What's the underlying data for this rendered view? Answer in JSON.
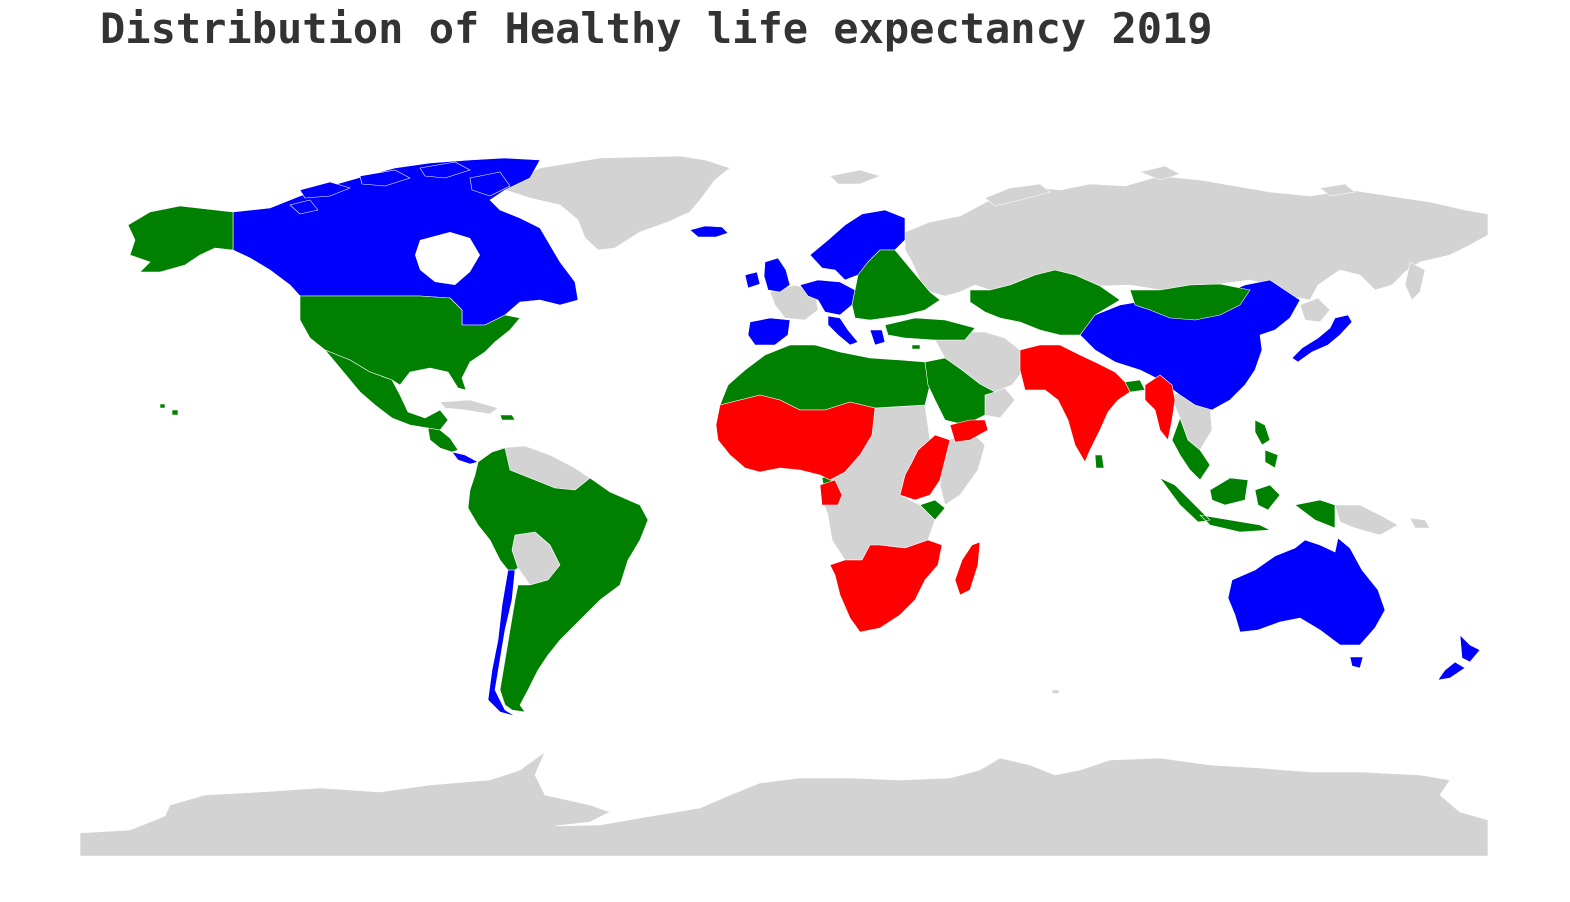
{
  "title": "Distribution of Healthy life expectancy 2019",
  "map": {
    "projection": "equirectangular",
    "background_color": "#ffffff",
    "no_data_color": "#d3d3d3",
    "category_colors": {
      "high": "#0000ff",
      "medium": "#008000",
      "low": "#ff0000",
      "no_data": "#d3d3d3"
    },
    "legend_shown": false,
    "axes_shown": false
  }
}
